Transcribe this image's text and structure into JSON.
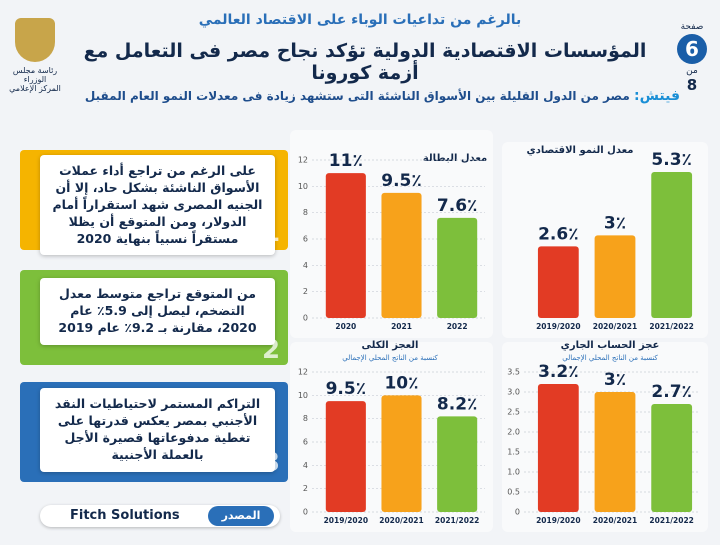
{
  "header": {
    "kicker": "بالرغم من تداعيات الوباء على الاقتصاد العالمي",
    "title": "المؤسسات الاقتصادية الدولية تؤكد نجاح مصر فى التعامل مع أزمة كورونا",
    "subtitle_label": "فيتش:",
    "subtitle": "مصر من الدول القليلة بين الأسواق الناشئة التى ستشهد زيادة فى معدلات النمو العام المقبل",
    "page_word": "صفحة",
    "page": "6",
    "of_word": "من",
    "pages": "8",
    "logo_line1": "رئاسة مجلس الوزراء",
    "logo_line2": "المركز الإعلامي"
  },
  "notes": [
    {
      "number": "1",
      "text": "على الرغم من تراجع أداء عملات الأسواق الناشئة بشكل حاد، إلا أن الجنيه المصرى شهد استقراراً أمام الدولار، ومن المتوقع أن يظلا مستقراً نسبياً بنهاية 2020"
    },
    {
      "number": "2",
      "text": "من المتوقع تراجع متوسط معدل التضخم، ليصل إلى 5.9٪ عام 2020، مقارنة بـ 9.2٪ عام 2019"
    },
    {
      "number": "3",
      "text": "التراكم المستمر لاحتياطيات النقد الأجنبي بمصر يعكس قدرتها على تغطية مدفوعاتها قصيرة الأجل بالعملة الأجنبية"
    }
  ],
  "source": {
    "label": "المصدر",
    "name": "Fitch Solutions"
  },
  "chart_data": [
    {
      "type": "bar",
      "title": "معدل البطالة",
      "categories": [
        "2020",
        "2021",
        "2022"
      ],
      "values": [
        11,
        9.5,
        7.6
      ],
      "value_labels": [
        "11٪",
        "9.5٪",
        "7.6٪"
      ],
      "colors": [
        "#e23b24",
        "#f7a21b",
        "#7dbf3b"
      ],
      "ylim": [
        0,
        12
      ],
      "yticks": [
        0,
        2,
        4,
        6,
        8,
        10,
        12
      ]
    },
    {
      "type": "bar",
      "title": "معدل النمو الاقتصادي",
      "categories": [
        "2019/2020",
        "2020/2021",
        "2021/2022"
      ],
      "values": [
        2.6,
        3,
        5.3
      ],
      "value_labels": [
        "2.6٪",
        "3٪",
        "5.3٪"
      ],
      "colors": [
        "#e23b24",
        "#f7a21b",
        "#7dbf3b"
      ]
    },
    {
      "type": "bar",
      "title": "العجز الكلى",
      "subtitle": "كنسبة من الناتج المحلي الإجمالي",
      "categories": [
        "2019/2020",
        "2020/2021",
        "2021/2022"
      ],
      "values": [
        9.5,
        10,
        8.2
      ],
      "value_labels": [
        "9.5٪",
        "10٪",
        "8.2٪"
      ],
      "colors": [
        "#e23b24",
        "#f7a21b",
        "#7dbf3b"
      ],
      "ylim": [
        0,
        12
      ],
      "yticks": [
        0,
        2,
        4,
        6,
        8,
        10,
        12
      ]
    },
    {
      "type": "bar",
      "title": "عجز الحساب الجاري",
      "subtitle": "كنسبة من الناتج المحلي الإجمالي",
      "categories": [
        "2019/2020",
        "2020/2021",
        "2021/2022"
      ],
      "values": [
        3.2,
        3,
        2.7
      ],
      "value_labels": [
        "3.2٪",
        "3٪",
        "2.7٪"
      ],
      "colors": [
        "#e23b24",
        "#f7a21b",
        "#7dbf3b"
      ],
      "ylim": [
        0,
        3.5
      ],
      "yticks": [
        0,
        0.5,
        {
          "value": 1,
          "label": "1.0"
        },
        1.5,
        {
          "value": 2,
          "label": "2.0"
        },
        2.5,
        {
          "value": 3,
          "label": "3.0"
        },
        3.5
      ]
    }
  ]
}
